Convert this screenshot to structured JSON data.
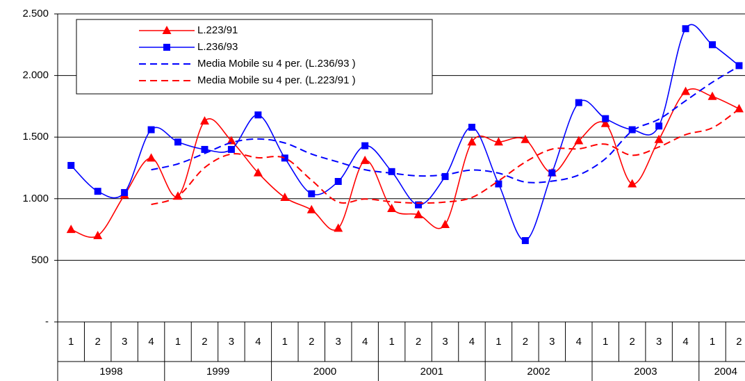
{
  "chart_data": {
    "type": "line",
    "categories": [
      [
        "1998",
        "1"
      ],
      [
        "1998",
        "2"
      ],
      [
        "1998",
        "3"
      ],
      [
        "1998",
        "4"
      ],
      [
        "1999",
        "1"
      ],
      [
        "1999",
        "2"
      ],
      [
        "1999",
        "3"
      ],
      [
        "1999",
        "4"
      ],
      [
        "2000",
        "1"
      ],
      [
        "2000",
        "2"
      ],
      [
        "2000",
        "3"
      ],
      [
        "2000",
        "4"
      ],
      [
        "2001",
        "1"
      ],
      [
        "2001",
        "2"
      ],
      [
        "2001",
        "3"
      ],
      [
        "2001",
        "4"
      ],
      [
        "2002",
        "1"
      ],
      [
        "2002",
        "2"
      ],
      [
        "2002",
        "3"
      ],
      [
        "2002",
        "4"
      ],
      [
        "2003",
        "1"
      ],
      [
        "2003",
        "2"
      ],
      [
        "2003",
        "3"
      ],
      [
        "2003",
        "4"
      ],
      [
        "2004",
        "1"
      ],
      [
        "2004",
        "2"
      ]
    ],
    "series": [
      {
        "name": "L.223/91",
        "color": "#ff0000",
        "marker": "triangle",
        "dash": false,
        "values": [
          750,
          700,
          1030,
          1330,
          1020,
          1630,
          1470,
          1210,
          1010,
          910,
          760,
          1310,
          920,
          870,
          790,
          1460,
          1460,
          1480,
          1210,
          1470,
          1610,
          1120,
          1480,
          1870,
          1830,
          1730
        ]
      },
      {
        "name": "L.236/93",
        "color": "#0000ff",
        "marker": "square",
        "dash": false,
        "values": [
          1270,
          1060,
          1050,
          1560,
          1460,
          1400,
          1400,
          1680,
          1330,
          1040,
          1140,
          1430,
          1220,
          950,
          1180,
          1580,
          1120,
          660,
          1210,
          1780,
          1650,
          1560,
          1590,
          2380,
          2250,
          2080
        ]
      },
      {
        "name": "Media Mobile su 4 per. (L.236/93 )",
        "color": "#0000ff",
        "marker": null,
        "dash": true,
        "values": [
          null,
          null,
          null,
          1235,
          1282.5,
          1367.5,
          1455,
          1485,
          1452.5,
          1362.5,
          1297.5,
          1235,
          1207.5,
          1185,
          1195,
          1232.5,
          1207.5,
          1135,
          1142.5,
          1192.5,
          1325,
          1550,
          1645,
          1795,
          1945,
          2075
        ]
      },
      {
        "name": "Media Mobile su 4 per. (L.223/91 )",
        "color": "#ff0000",
        "marker": null,
        "dash": true,
        "values": [
          null,
          null,
          null,
          952.5,
          1020,
          1252.5,
          1362.5,
          1332.5,
          1330,
          1150,
          972.5,
          997.5,
          975,
          965,
          972.5,
          1010,
          1145,
          1297.5,
          1402.5,
          1405,
          1442.5,
          1352.5,
          1420,
          1520,
          1575,
          1727.5
        ]
      }
    ],
    "ylim": [
      0,
      2500
    ],
    "yticks": [
      {
        "value": 0,
        "label": "-"
      },
      500,
      {
        "value": 1000,
        "label": "1.000"
      },
      {
        "value": 1500,
        "label": "1.500"
      },
      {
        "value": 2000,
        "label": "2.000"
      },
      {
        "value": 2500,
        "label": "2.500"
      }
    ],
    "grid": true,
    "smooth": true
  }
}
